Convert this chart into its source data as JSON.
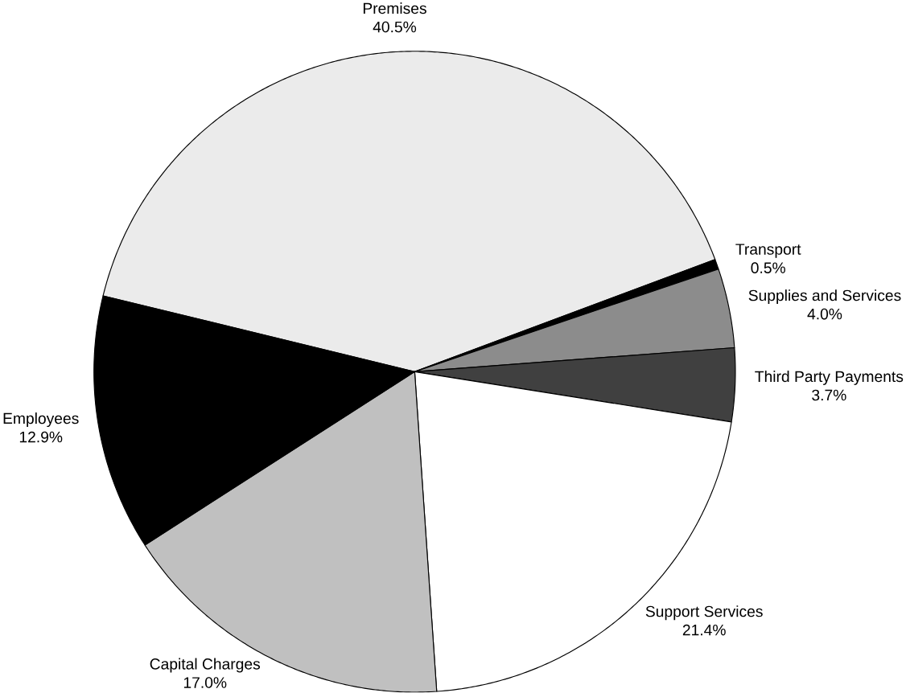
{
  "chart_data": {
    "type": "pie",
    "categories": [
      "Premises",
      "Transport",
      "Supplies and Services",
      "Third Party Payments",
      "Support Services",
      "Capital Charges",
      "Employees"
    ],
    "values": [
      40.5,
      0.5,
      4.0,
      3.7,
      21.4,
      17.0,
      12.9
    ],
    "colors": [
      "#ebebeb",
      "#000000",
      "#8c8c8c",
      "#404040",
      "#ffffff",
      "#c0c0c0",
      "#000000"
    ],
    "value_labels": [
      "40.5%",
      "0.5%",
      "4.0%",
      "3.7%",
      "21.4%",
      "17.0%",
      "12.9%"
    ]
  }
}
